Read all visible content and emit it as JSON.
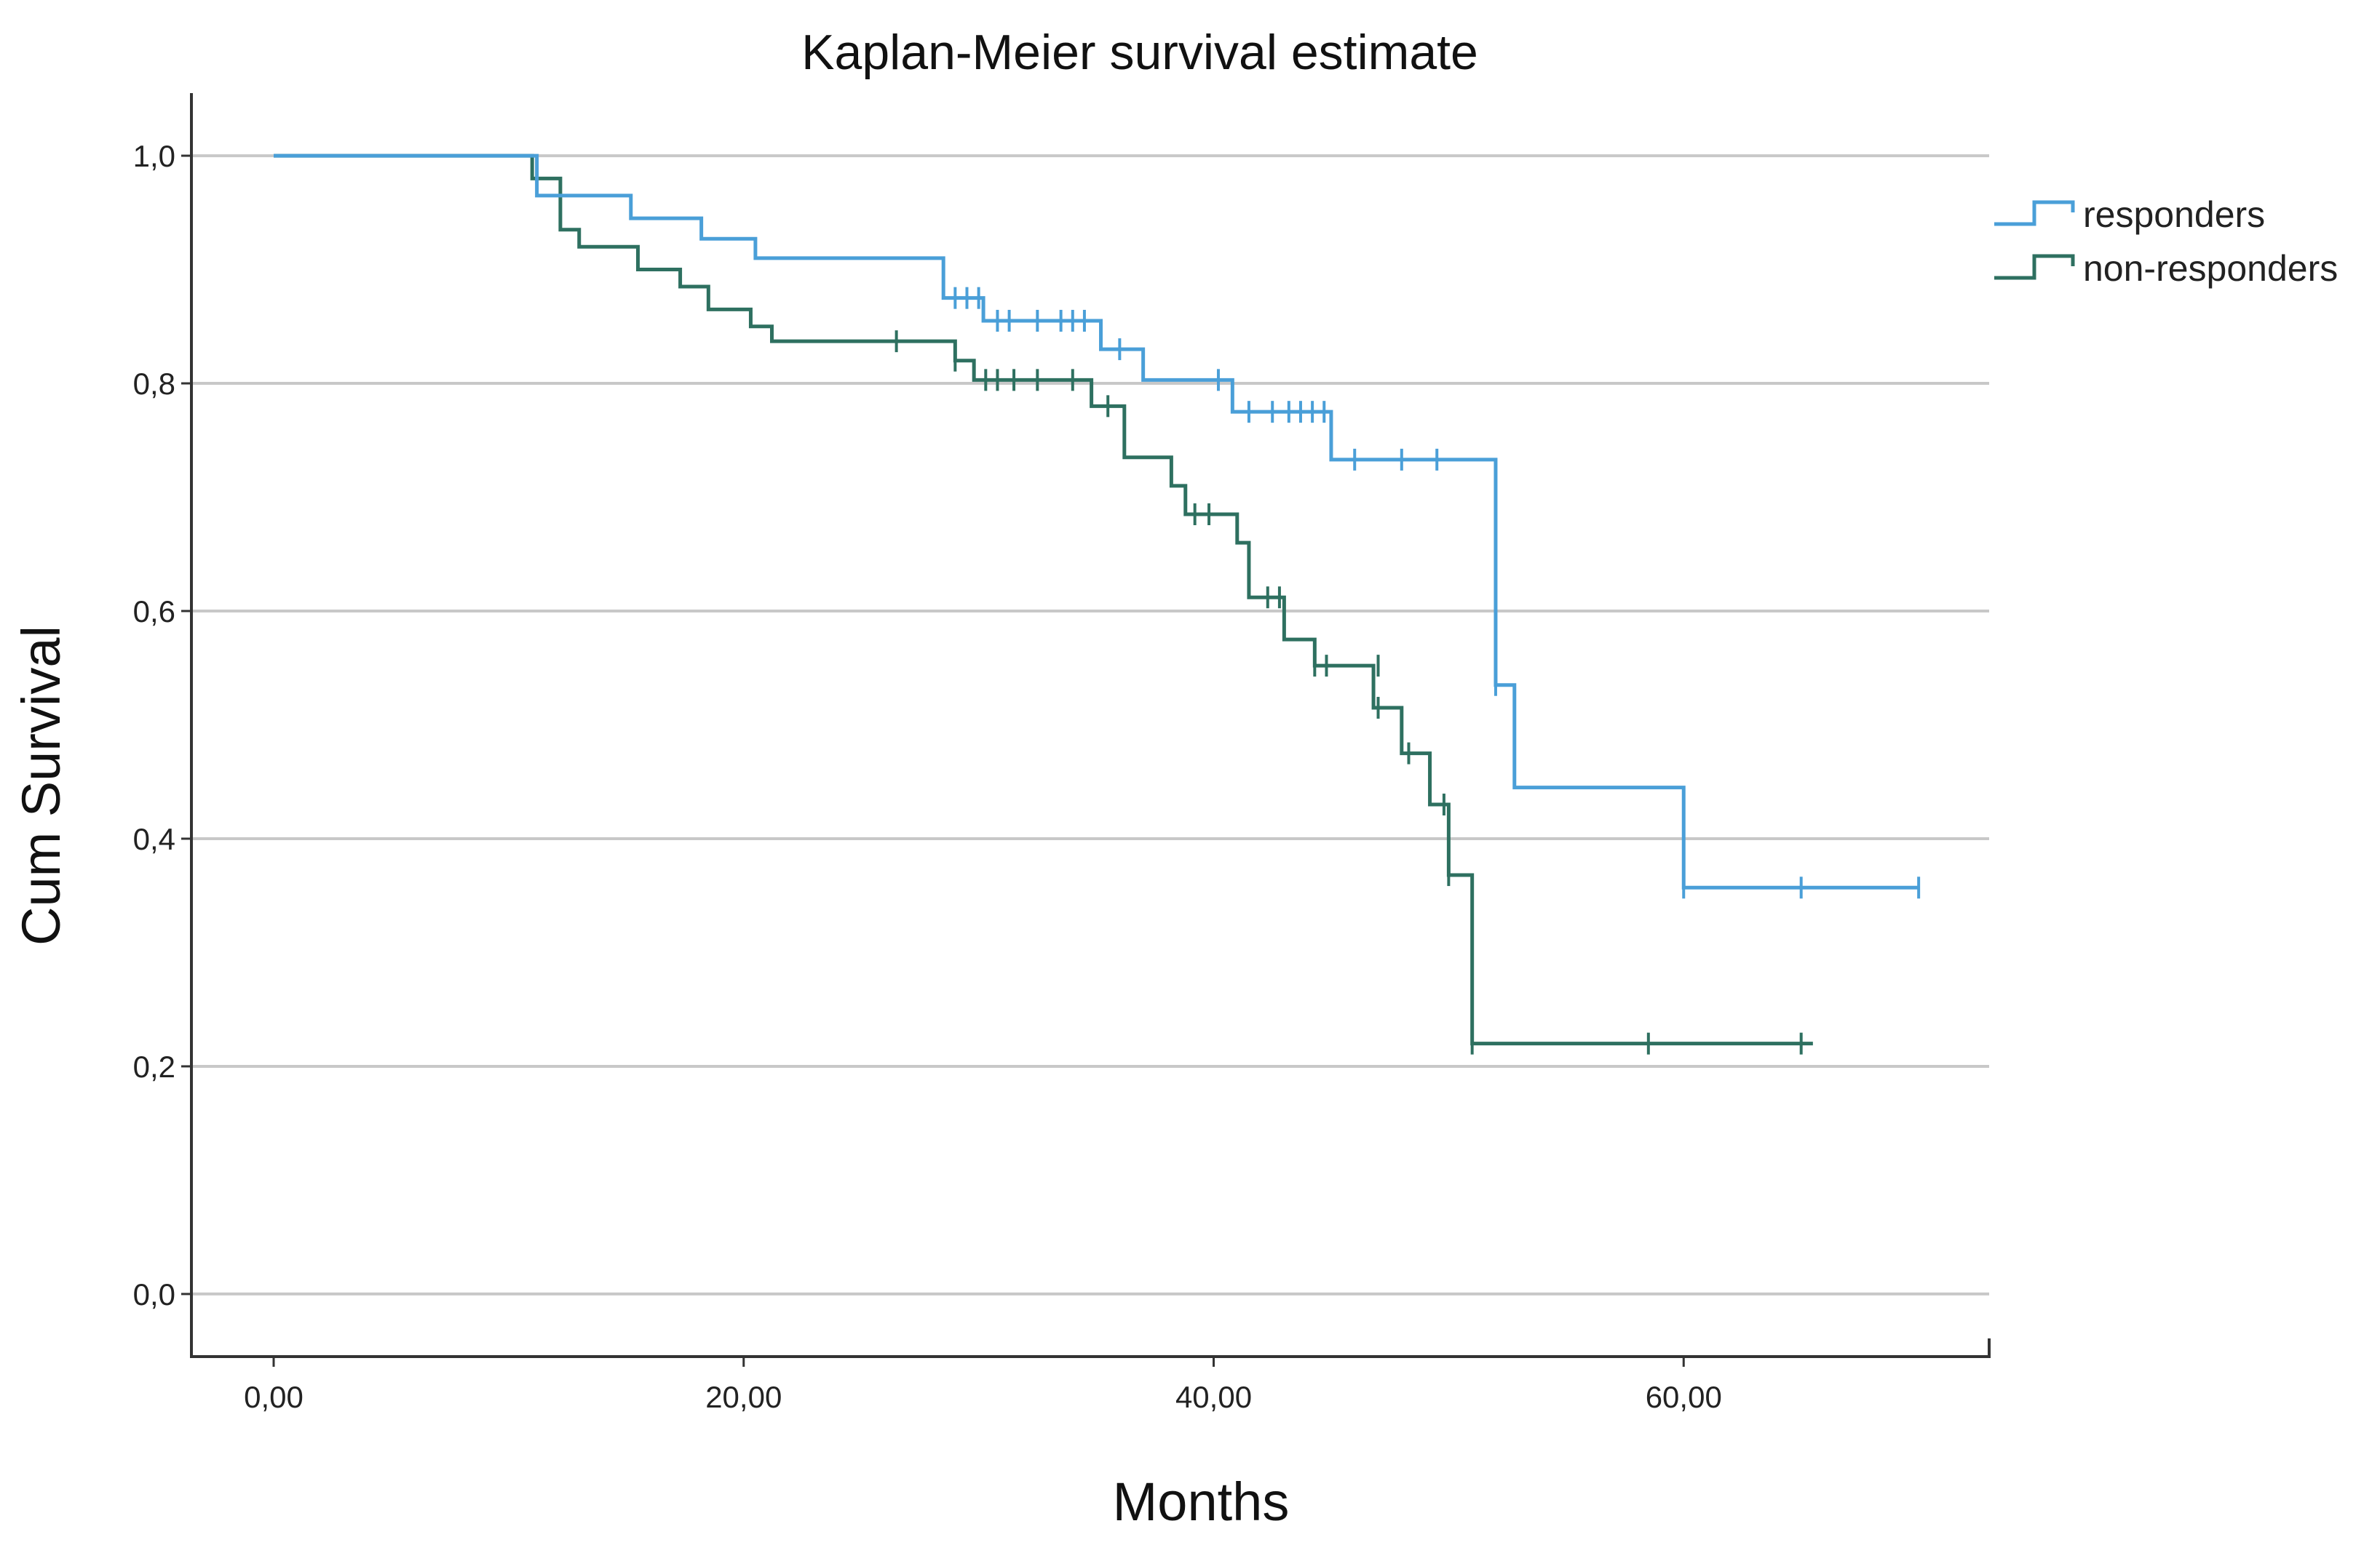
{
  "chart_data": {
    "type": "line",
    "subtype": "kaplan-meier step",
    "title": "Kaplan-Meier survival estimate",
    "xlabel": "Months",
    "ylabel": "Cum Survival",
    "xlim": [
      -3.5,
      73
    ],
    "ylim": [
      -0.055,
      1.055
    ],
    "xticks": [
      0,
      20,
      40,
      60
    ],
    "xtick_labels": [
      "0,00",
      "20,00",
      "40,00",
      "60,00"
    ],
    "yticks": [
      0.0,
      0.2,
      0.4,
      0.6,
      0.8,
      1.0
    ],
    "ytick_labels": [
      "0,0",
      "0,2",
      "0,4",
      "0,6",
      "0,8",
      "1,0"
    ],
    "grid": "horizontal",
    "legend_position": "top-right",
    "series": [
      {
        "name": "responders",
        "color": "#4a9fd8",
        "end_x": 70,
        "steps": [
          [
            0,
            1.0
          ],
          [
            11.2,
            0.965
          ],
          [
            15.2,
            0.945
          ],
          [
            18.2,
            0.927
          ],
          [
            20.5,
            0.91
          ],
          [
            28.5,
            0.875
          ],
          [
            30.2,
            0.855
          ],
          [
            35.2,
            0.83
          ],
          [
            37.0,
            0.803
          ],
          [
            40.8,
            0.775
          ],
          [
            45.0,
            0.733
          ],
          [
            52.0,
            0.535
          ],
          [
            52.8,
            0.445
          ],
          [
            60.0,
            0.357
          ]
        ],
        "censored": [
          [
            29.0,
            0.875
          ],
          [
            29.5,
            0.875
          ],
          [
            30.0,
            0.875
          ],
          [
            30.8,
            0.855
          ],
          [
            31.3,
            0.855
          ],
          [
            32.5,
            0.855
          ],
          [
            33.5,
            0.855
          ],
          [
            34.0,
            0.855
          ],
          [
            34.5,
            0.855
          ],
          [
            36.0,
            0.83
          ],
          [
            40.2,
            0.803
          ],
          [
            41.5,
            0.775
          ],
          [
            42.5,
            0.775
          ],
          [
            43.2,
            0.775
          ],
          [
            43.7,
            0.775
          ],
          [
            44.2,
            0.775
          ],
          [
            44.7,
            0.775
          ],
          [
            46.0,
            0.733
          ],
          [
            48.0,
            0.733
          ],
          [
            49.5,
            0.733
          ],
          [
            52.0,
            0.535
          ],
          [
            60.0,
            0.357
          ],
          [
            65.0,
            0.357
          ],
          [
            70.0,
            0.357
          ]
        ]
      },
      {
        "name": "non-responders",
        "color": "#2e7060",
        "end_x": 65.5,
        "steps": [
          [
            0,
            1.0
          ],
          [
            11.0,
            0.98
          ],
          [
            12.2,
            0.935
          ],
          [
            13.0,
            0.92
          ],
          [
            15.5,
            0.9
          ],
          [
            17.3,
            0.885
          ],
          [
            18.5,
            0.865
          ],
          [
            20.3,
            0.85
          ],
          [
            21.2,
            0.837
          ],
          [
            29.0,
            0.82
          ],
          [
            29.8,
            0.803
          ],
          [
            34.8,
            0.78
          ],
          [
            36.2,
            0.735
          ],
          [
            38.2,
            0.71
          ],
          [
            38.8,
            0.685
          ],
          [
            41.0,
            0.66
          ],
          [
            41.5,
            0.612
          ],
          [
            43.0,
            0.575
          ],
          [
            44.3,
            0.552
          ],
          [
            46.8,
            0.515
          ],
          [
            48.0,
            0.475
          ],
          [
            49.2,
            0.43
          ],
          [
            50.0,
            0.368
          ],
          [
            51.0,
            0.22
          ]
        ],
        "censored": [
          [
            26.5,
            0.837
          ],
          [
            29.0,
            0.82
          ],
          [
            30.3,
            0.803
          ],
          [
            30.8,
            0.803
          ],
          [
            31.5,
            0.803
          ],
          [
            32.5,
            0.803
          ],
          [
            34.0,
            0.803
          ],
          [
            35.5,
            0.78
          ],
          [
            39.2,
            0.685
          ],
          [
            39.8,
            0.685
          ],
          [
            42.3,
            0.612
          ],
          [
            42.8,
            0.612
          ],
          [
            44.3,
            0.552
          ],
          [
            44.8,
            0.552
          ],
          [
            47.0,
            0.552
          ],
          [
            47.0,
            0.515
          ],
          [
            48.3,
            0.475
          ],
          [
            49.8,
            0.43
          ],
          [
            50.0,
            0.368
          ],
          [
            51.0,
            0.22
          ],
          [
            58.5,
            0.22
          ],
          [
            65.0,
            0.22
          ]
        ]
      }
    ]
  }
}
